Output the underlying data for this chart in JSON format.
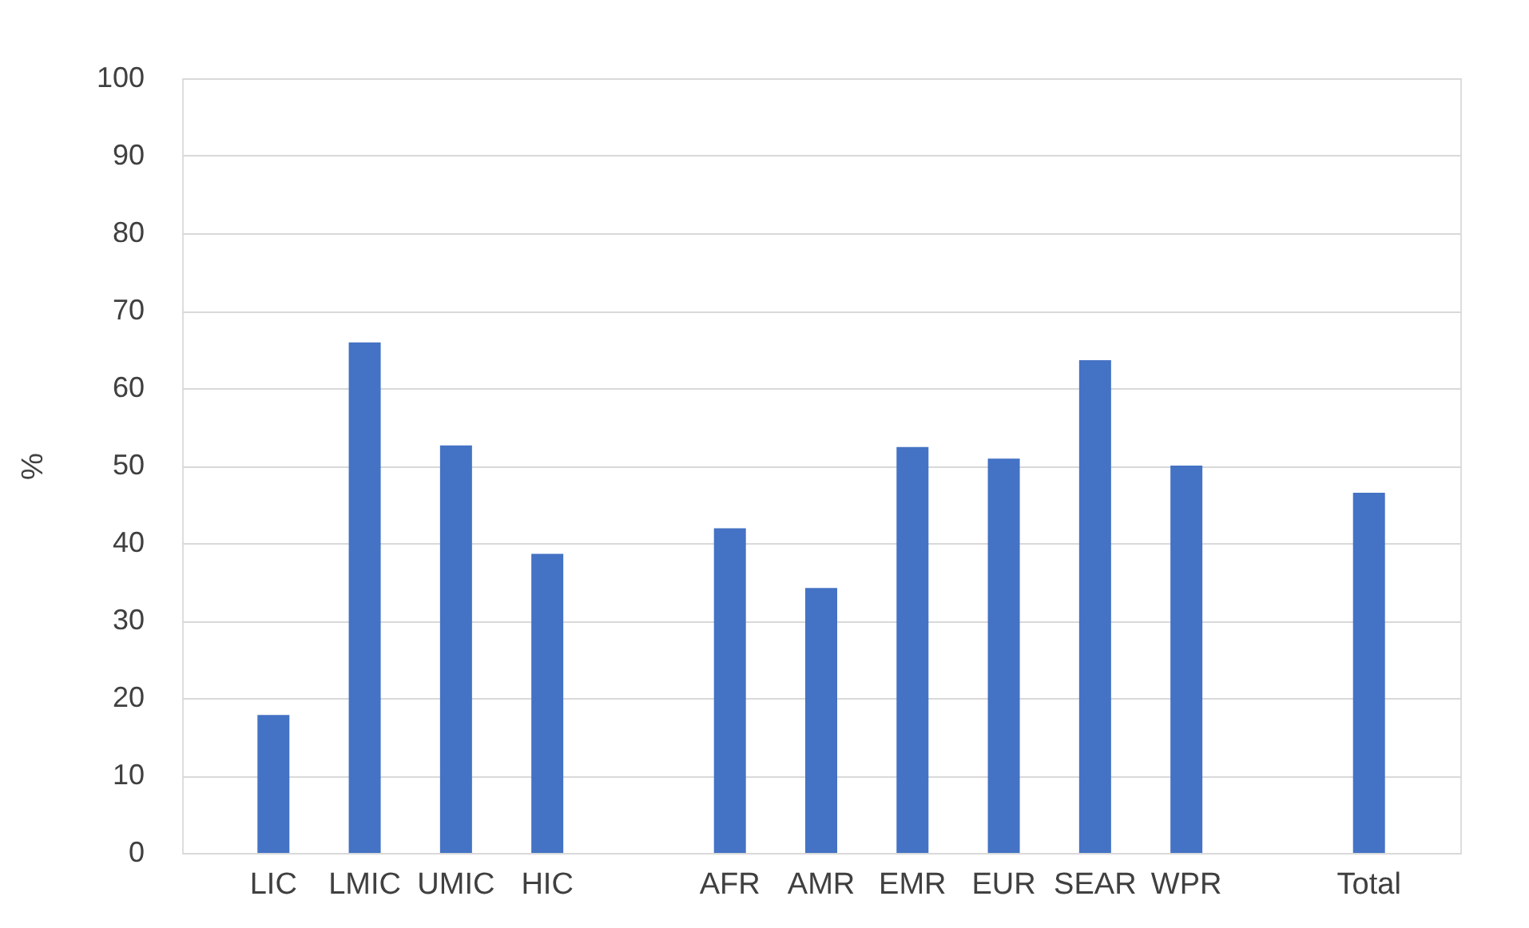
{
  "chart_data": {
    "type": "bar",
    "ylabel": "%",
    "categories": [
      "LIC",
      "LMIC",
      "UMIC",
      "HIC",
      null,
      "AFR",
      "AMR",
      "EMR",
      "EUR",
      "SEAR",
      "WPR",
      null,
      "Total"
    ],
    "values": [
      17.8,
      65.9,
      52.6,
      38.6,
      null,
      41.9,
      34.2,
      52.4,
      50.9,
      63.6,
      50.0,
      null,
      46.5
    ],
    "color": "#4472c4",
    "ylim": [
      0,
      100
    ],
    "yticks": [
      0,
      10,
      20,
      30,
      40,
      50,
      60,
      70,
      80,
      90,
      100
    ],
    "grid": "y"
  }
}
